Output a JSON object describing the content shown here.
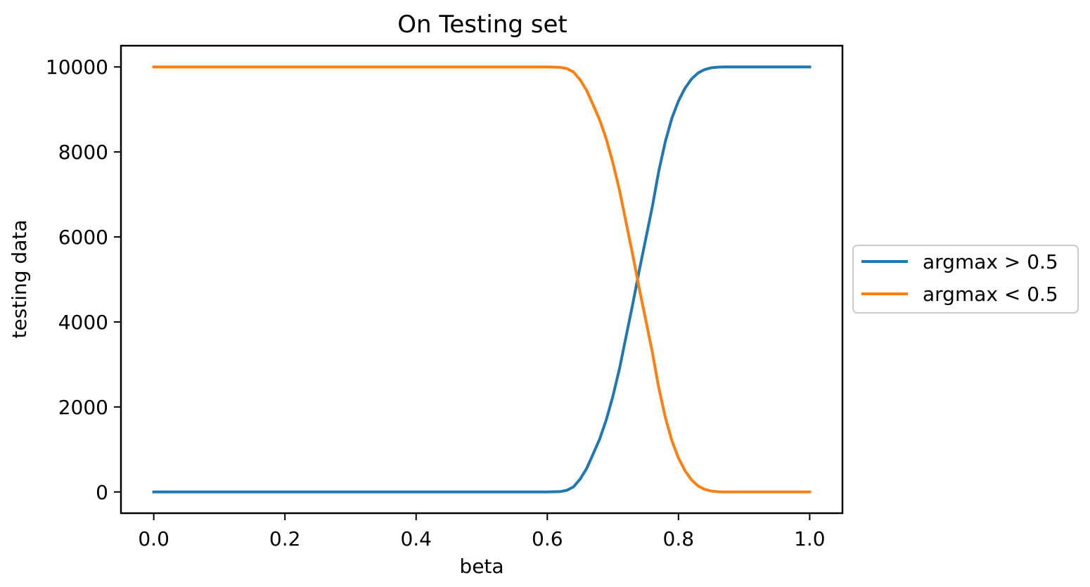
{
  "chart_data": {
    "type": "line",
    "title": "On Testing set",
    "xlabel": "beta",
    "ylabel": "testing data",
    "xlim": [
      -0.05,
      1.05
    ],
    "ylim": [
      -500,
      10500
    ],
    "xticks": [
      0.0,
      0.2,
      0.4,
      0.6,
      0.8,
      1.0
    ],
    "xtick_labels": [
      "0.0",
      "0.2",
      "0.4",
      "0.6",
      "0.8",
      "1.0"
    ],
    "yticks": [
      0,
      2000,
      4000,
      6000,
      8000,
      10000
    ],
    "ytick_labels": [
      "0",
      "2000",
      "4000",
      "6000",
      "8000",
      "10000"
    ],
    "grid": false,
    "legend_position": "outside-right",
    "x": [
      0.0,
      0.05,
      0.1,
      0.15,
      0.2,
      0.25,
      0.3,
      0.35,
      0.4,
      0.45,
      0.5,
      0.55,
      0.6,
      0.62,
      0.63,
      0.64,
      0.65,
      0.66,
      0.67,
      0.68,
      0.69,
      0.7,
      0.71,
      0.72,
      0.73,
      0.74,
      0.75,
      0.76,
      0.77,
      0.78,
      0.79,
      0.8,
      0.81,
      0.82,
      0.83,
      0.84,
      0.85,
      0.86,
      0.87,
      0.88,
      0.9,
      0.95,
      1.0
    ],
    "series": [
      {
        "name": "argmax > 0.5",
        "color": "#1f77b4",
        "values": [
          0,
          0,
          0,
          0,
          0,
          0,
          0,
          0,
          0,
          0,
          0,
          0,
          0,
          10,
          40,
          120,
          300,
          550,
          900,
          1250,
          1700,
          2250,
          2900,
          3650,
          4400,
          5200,
          5950,
          6700,
          7550,
          8250,
          8800,
          9200,
          9500,
          9720,
          9860,
          9940,
          9980,
          9995,
          10000,
          10000,
          10000,
          10000,
          10000
        ]
      },
      {
        "name": "argmax < 0.5",
        "color": "#ff7f0e",
        "values": [
          10000,
          10000,
          10000,
          10000,
          10000,
          10000,
          10000,
          10000,
          10000,
          10000,
          10000,
          10000,
          10000,
          9990,
          9960,
          9880,
          9700,
          9450,
          9100,
          8750,
          8300,
          7750,
          7100,
          6350,
          5600,
          4800,
          4050,
          3300,
          2450,
          1750,
          1200,
          800,
          500,
          280,
          140,
          60,
          20,
          5,
          0,
          0,
          0,
          0,
          0
        ]
      }
    ]
  }
}
